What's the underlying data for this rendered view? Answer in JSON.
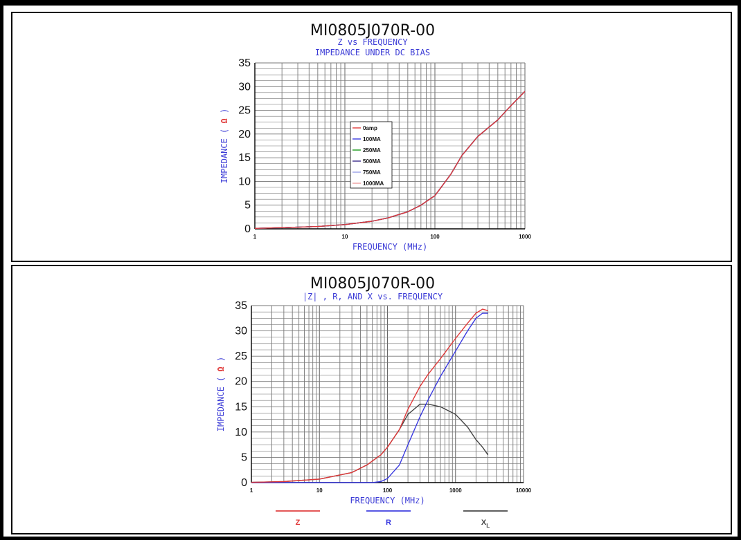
{
  "chart_data": [
    {
      "type": "line",
      "title": "MI0805J070R-00",
      "subtitle_lines": [
        "Z vs FREQUENCY",
        "IMPEDANCE UNDER DC BIAS"
      ],
      "xlabel": "FREQUENCY (MHz)",
      "ylabel_text": "IMPEDANCE (",
      "ylabel_unit": "Ω",
      "ylabel_close": ")",
      "x_scale": "log",
      "xlim": [
        1,
        1000
      ],
      "ylim": [
        0,
        35
      ],
      "x_ticks": [
        "1",
        "10",
        "100",
        "1000"
      ],
      "y_ticks": [
        "0",
        "5",
        "10",
        "15",
        "20",
        "25",
        "30",
        "35"
      ],
      "grid": true,
      "legend_position": "center-left",
      "series": [
        {
          "name": "0amp",
          "color": "#e03a3a",
          "x": [
            1,
            2,
            5,
            10,
            20,
            30,
            50,
            70,
            100,
            150,
            200,
            300,
            500,
            700,
            1000
          ],
          "y": [
            0.1,
            0.25,
            0.5,
            0.9,
            1.6,
            2.3,
            3.6,
            5.0,
            7.0,
            11.5,
            15.5,
            19.5,
            23.0,
            26.0,
            29.0
          ]
        },
        {
          "name": "100MA",
          "color": "#3a3ae0",
          "x": [
            1,
            2,
            5,
            10,
            20,
            30,
            50,
            70,
            100,
            150,
            200,
            300,
            500,
            700,
            1000
          ],
          "y": [
            0.1,
            0.25,
            0.5,
            0.9,
            1.6,
            2.3,
            3.6,
            5.0,
            7.0,
            11.5,
            15.5,
            19.5,
            23.0,
            26.0,
            29.0
          ]
        },
        {
          "name": "250MA",
          "color": "#1a9a1a",
          "x": [
            1,
            2,
            5,
            10,
            20,
            30,
            50,
            70,
            100,
            150,
            200,
            300,
            500,
            700,
            1000
          ],
          "y": [
            0.1,
            0.25,
            0.5,
            0.9,
            1.6,
            2.3,
            3.6,
            5.0,
            7.0,
            11.5,
            15.5,
            19.5,
            23.0,
            26.0,
            29.0
          ]
        },
        {
          "name": "500MA",
          "color": "#3a2a8a",
          "x": [
            1,
            2,
            5,
            10,
            20,
            30,
            50,
            70,
            100,
            150,
            200,
            300,
            500,
            700,
            1000
          ],
          "y": [
            0.1,
            0.25,
            0.5,
            0.9,
            1.6,
            2.3,
            3.6,
            5.0,
            7.0,
            11.5,
            15.5,
            19.5,
            23.0,
            26.0,
            29.0
          ]
        },
        {
          "name": "750MA",
          "color": "#9aa0e8",
          "x": [
            1,
            2,
            5,
            10,
            20,
            30,
            50,
            70,
            100,
            150,
            200,
            300,
            500,
            700,
            1000
          ],
          "y": [
            0.1,
            0.25,
            0.5,
            0.9,
            1.6,
            2.3,
            3.6,
            5.0,
            7.0,
            11.5,
            15.5,
            19.5,
            23.0,
            26.0,
            29.0
          ]
        },
        {
          "name": "1000MA",
          "color": "#f0a0a0",
          "x": [
            1,
            2,
            5,
            10,
            20,
            30,
            50,
            70,
            100,
            150,
            200,
            300,
            500,
            700,
            1000
          ],
          "y": [
            0.1,
            0.25,
            0.5,
            0.9,
            1.6,
            2.3,
            3.6,
            5.0,
            7.0,
            11.5,
            15.5,
            19.5,
            23.0,
            26.0,
            29.0
          ]
        }
      ]
    },
    {
      "type": "line",
      "title": "MI0805J070R-00",
      "subtitle_lines": [
        "|Z| , R, AND X vs. FREQUENCY"
      ],
      "xlabel": "FREQUENCY (MHz)",
      "ylabel_text": "IMPEDANCE (",
      "ylabel_unit": "Ω",
      "ylabel_close": ")",
      "x_scale": "log",
      "xlim": [
        1,
        10000
      ],
      "ylim": [
        0,
        35
      ],
      "x_ticks": [
        "1",
        "10",
        "100",
        "1000",
        "10000"
      ],
      "y_ticks": [
        "0",
        "5",
        "10",
        "15",
        "20",
        "25",
        "30",
        "35"
      ],
      "grid": true,
      "legend_position": "bottom",
      "series": [
        {
          "name": "Z",
          "color": "#e03a3a",
          "x": [
            1,
            3,
            10,
            30,
            50,
            80,
            100,
            150,
            200,
            300,
            400,
            600,
            1000,
            1500,
            2000,
            2500,
            3000
          ],
          "y": [
            0.05,
            0.2,
            0.7,
            2.0,
            3.5,
            5.5,
            7.0,
            10.5,
            14.5,
            19.0,
            21.5,
            24.5,
            28.5,
            31.5,
            33.5,
            34.3,
            34.0
          ]
        },
        {
          "name": "R",
          "color": "#3a3ae0",
          "x": [
            1,
            10,
            60,
            80,
            100,
            150,
            200,
            300,
            400,
            600,
            1000,
            1500,
            2000,
            2500,
            3000
          ],
          "y": [
            0.0,
            0.0,
            0.0,
            0.2,
            0.8,
            3.5,
            7.5,
            13.0,
            16.5,
            21.0,
            26.0,
            30.0,
            32.5,
            33.5,
            33.5
          ]
        },
        {
          "name": "X",
          "name_sub": "L",
          "color": "#444444",
          "x": [
            1,
            3,
            10,
            30,
            50,
            80,
            100,
            150,
            200,
            300,
            400,
            600,
            1000,
            1500,
            2000,
            2500,
            3000
          ],
          "y": [
            0.05,
            0.2,
            0.7,
            2.0,
            3.5,
            5.5,
            7.0,
            10.5,
            13.5,
            15.5,
            15.5,
            15.0,
            13.5,
            11.0,
            8.5,
            7.0,
            5.5
          ]
        }
      ]
    }
  ]
}
